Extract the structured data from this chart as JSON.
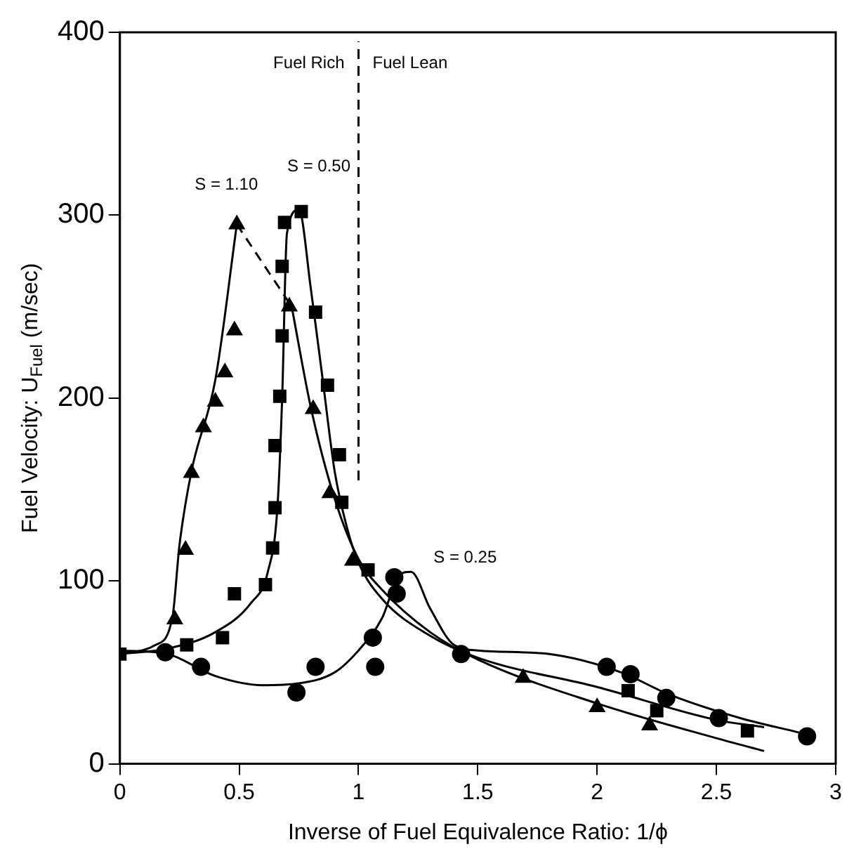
{
  "chart_data": {
    "type": "scatter",
    "xlabel": "Inverse of Fuel Equivalence Ratio: 1/ϕ",
    "ylabel": "Fuel Velocity: U$_{Fuel}$ (m/sec)",
    "xlim": [
      0,
      3
    ],
    "xticks": [
      0,
      0.5,
      1,
      1.5,
      2,
      2.5,
      3
    ],
    "ylim": [
      0,
      400
    ],
    "yticks": [
      0,
      100,
      200,
      300,
      400
    ],
    "grid": false,
    "legend": false,
    "series": [
      {
        "type": "scatter",
        "marker": "triangle",
        "color": "#000000",
        "x": [
          0.23,
          0.275,
          0.3,
          0.35,
          0.4,
          0.44,
          0.48,
          0.49,
          0.71,
          0.81,
          0.88,
          0.975,
          1.69,
          2.0,
          2.22
        ],
        "values": [
          79,
          117,
          159,
          184,
          198,
          214,
          237,
          295,
          250,
          194,
          148,
          111,
          47,
          31,
          21
        ]
      },
      {
        "type": "scatter",
        "marker": "square",
        "color": "#000000",
        "x": [
          0,
          0.28,
          0.43,
          0.48,
          0.61,
          0.64,
          0.65,
          0.65,
          0.67,
          0.68,
          0.68,
          0.69,
          0.76,
          0.82,
          0.87,
          0.92,
          0.93,
          1.04,
          2.13,
          2.25,
          2.63
        ],
        "values": [
          60,
          65,
          69,
          93,
          98,
          118,
          140,
          174,
          201,
          234,
          272,
          296,
          302,
          247,
          207,
          169,
          143,
          106,
          40,
          29,
          18
        ]
      },
      {
        "type": "scatter",
        "marker": "circle",
        "color": "#000000",
        "x": [
          0.19,
          0.34,
          0.74,
          0.82,
          1.06,
          1.07,
          1.15,
          1.16,
          1.43,
          2.04,
          2.14,
          2.29,
          2.51,
          2.88
        ],
        "values": [
          61,
          53,
          39,
          53,
          69,
          53,
          102,
          93,
          60,
          53,
          49,
          36,
          25,
          15
        ]
      },
      {
        "type": "line",
        "marker": "none",
        "line_style": "solid",
        "color": "#000000",
        "x": [
          0,
          0.15,
          0.22,
          0.25,
          0.3,
          0.4,
          0.49
        ],
        "values": [
          60,
          65,
          80,
          120,
          160,
          210,
          295
        ]
      },
      {
        "type": "line",
        "marker": "none",
        "line_style": "dashed",
        "color": "#000000",
        "x": [
          0.49,
          0.72
        ],
        "values": [
          295,
          250
        ]
      },
      {
        "type": "line",
        "marker": "none",
        "line_style": "solid",
        "color": "#000000",
        "x": [
          0.72,
          0.8,
          0.9,
          1.0,
          1.1,
          1.3,
          1.5,
          2.0,
          2.5,
          2.7
        ],
        "values": [
          250,
          195,
          145,
          112,
          95,
          72,
          57,
          33,
          14,
          7
        ]
      },
      {
        "type": "line",
        "marker": "none",
        "line_style": "solid",
        "color": "#000000",
        "x": [
          0,
          0.2,
          0.4,
          0.55,
          0.62,
          0.66,
          0.68,
          0.7,
          0.75,
          0.8,
          0.85,
          0.9,
          0.95,
          1.0,
          1.1,
          1.3,
          1.5,
          2.0,
          2.5,
          2.7
        ],
        "values": [
          60,
          63,
          72,
          88,
          105,
          140,
          200,
          290,
          303,
          260,
          210,
          160,
          130,
          110,
          90,
          70,
          58,
          42,
          24,
          20
        ]
      },
      {
        "type": "line",
        "marker": "none",
        "line_style": "solid",
        "color": "#000000",
        "x": [
          0,
          0.2,
          0.4,
          0.6,
          0.75,
          0.9,
          1.0,
          1.1,
          1.17,
          1.22,
          1.3,
          1.4,
          1.5,
          1.8,
          2.1,
          2.3,
          2.6,
          2.85
        ],
        "values": [
          62,
          60,
          48,
          43,
          44,
          50,
          62,
          80,
          103,
          105,
          85,
          65,
          62,
          60,
          50,
          38,
          25,
          17
        ]
      }
    ],
    "ref_lines": [
      {
        "axis": "x",
        "value": 1,
        "line_style": "dashed",
        "color": "#000000"
      }
    ],
    "annotations": [
      {
        "text": "S = 1.10",
        "x": 0.49,
        "y": 295
      },
      {
        "text": "S = 0.50",
        "x": 0.76,
        "y": 302
      },
      {
        "text": "S = 0.25",
        "x": 1.22,
        "y": 105
      },
      "Fuel Rich",
      "Fuel Lean"
    ]
  }
}
